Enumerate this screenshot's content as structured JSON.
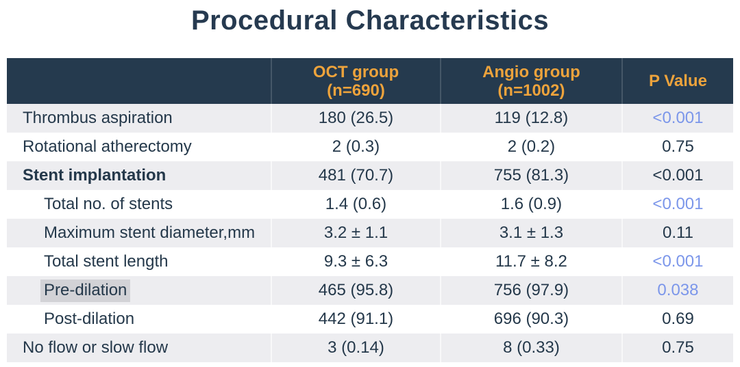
{
  "title": "Procedural Characteristics",
  "colors": {
    "header_bg": "#253a4e",
    "header_text": "#eda33c",
    "body_text": "#24384a",
    "p_significant": "#7b96ea",
    "row_shade": "#ededf0",
    "highlight": "#d2d2d6",
    "title_text": "#263a50"
  },
  "chart_data": {
    "type": "table",
    "title": "Procedural Characteristics",
    "columns": [
      {
        "label": ""
      },
      {
        "line1": "OCT group",
        "line2": "(n=690)"
      },
      {
        "line1": "Angio group",
        "line2": "(n=1002)"
      },
      {
        "label": "P Value"
      }
    ],
    "rows": [
      {
        "label": "Thrombus aspiration",
        "oct": "180 (26.5)",
        "angio": "119 (12.8)",
        "p": "<0.001"
      },
      {
        "label": "Rotational atherectomy",
        "oct": "2 (0.3)",
        "angio": "2 (0.2)",
        "p": "0.75"
      },
      {
        "label": "Stent implantation",
        "oct": "481 (70.7)",
        "angio": "755 (81.3)",
        "p": "<0.001"
      },
      {
        "label": "Total no. of stents",
        "oct": "1.4 (0.6)",
        "angio": "1.6 (0.9)",
        "p": "<0.001"
      },
      {
        "label": "Maximum stent diameter,mm",
        "oct": "3.2 ± 1.1",
        "angio": "3.1 ± 1.3",
        "p": "0.11"
      },
      {
        "label": "Total stent length",
        "oct": "9.3 ± 6.3",
        "angio": "11.7 ± 8.2",
        "p": "<0.001"
      },
      {
        "label": "Pre-dilation",
        "oct": "465 (95.8)",
        "angio": "756 (97.9)",
        "p": "0.038"
      },
      {
        "label": "Post-dilation",
        "oct": "442 (91.1)",
        "angio": "696 (90.3)",
        "p": "0.69"
      },
      {
        "label": "No flow or slow flow",
        "oct": "3 (0.14)",
        "angio": "8 (0.33)",
        "p": "0.75"
      }
    ]
  }
}
